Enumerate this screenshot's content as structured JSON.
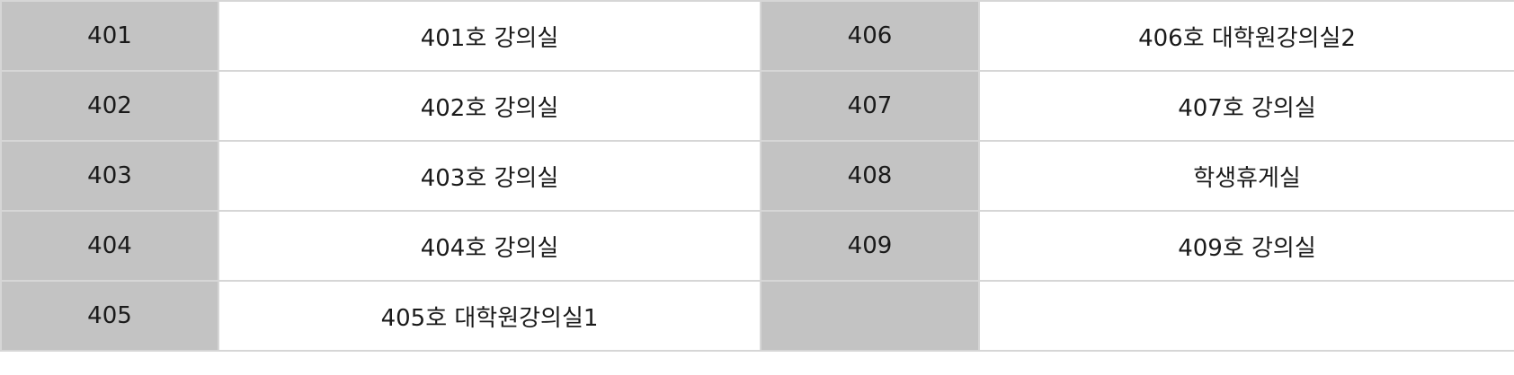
{
  "rooms": {
    "rows": [
      {
        "left_number": "401",
        "left_name": "401호 강의실",
        "right_number": "406",
        "right_name": "406호 대학원강의실2"
      },
      {
        "left_number": "402",
        "left_name": "402호 강의실",
        "right_number": "407",
        "right_name": "407호 강의실"
      },
      {
        "left_number": "403",
        "left_name": "403호 강의실",
        "right_number": "408",
        "right_name": "학생휴게실"
      },
      {
        "left_number": "404",
        "left_name": "404호 강의실",
        "right_number": "409",
        "right_name": "409호 강의실"
      },
      {
        "left_number": "405",
        "left_name": "405호 대학원강의실1",
        "right_number": "",
        "right_name": ""
      }
    ]
  },
  "colors": {
    "number_cell_bg": "#c3c3c3",
    "name_cell_bg": "#ffffff",
    "border": "#d6d6d6"
  }
}
